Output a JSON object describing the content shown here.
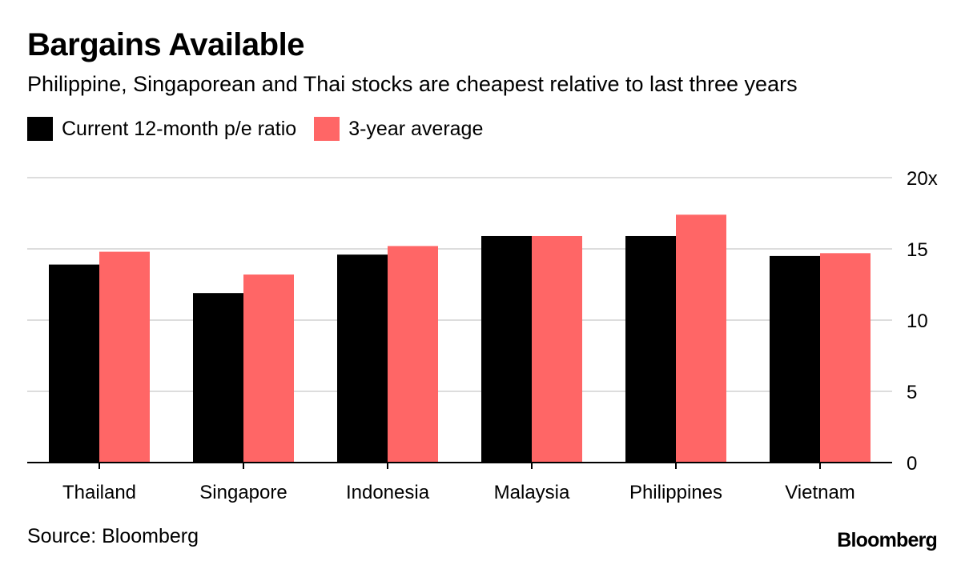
{
  "chart_data": {
    "type": "bar",
    "title": "Bargains Available",
    "subtitle": "Philippine, Singaporean and Thai stocks are cheapest relative to last three years",
    "categories": [
      "Thailand",
      "Singapore",
      "Indonesia",
      "Malaysia",
      "Philippines",
      "Vietnam"
    ],
    "series": [
      {
        "name": "Current 12-month p/e ratio",
        "color": "#000000",
        "values": [
          13.9,
          11.9,
          14.6,
          15.9,
          15.9,
          14.5
        ]
      },
      {
        "name": "3-year average",
        "color": "#ff6666",
        "values": [
          14.8,
          13.2,
          15.2,
          15.9,
          17.4,
          14.7
        ]
      }
    ],
    "ylim": [
      0,
      20
    ],
    "yticks": [
      {
        "value": 0,
        "label": "0"
      },
      {
        "value": 5,
        "label": "5"
      },
      {
        "value": 10,
        "label": "10"
      },
      {
        "value": 15,
        "label": "15"
      },
      {
        "value": 20,
        "label": "20x"
      }
    ],
    "grid": true,
    "legend_position": "top-left",
    "yaxis_side": "right",
    "source": "Source: Bloomberg"
  },
  "brand": "Bloomberg",
  "colors": {
    "background": "#ffffff",
    "grid": "#dddddd",
    "axis": "#000000"
  }
}
